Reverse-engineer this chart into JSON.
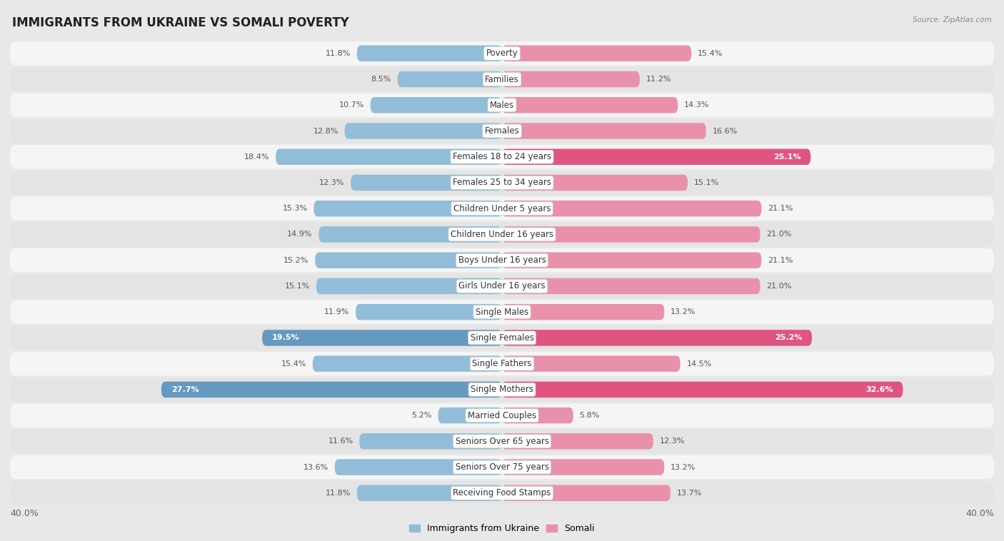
{
  "title": "IMMIGRANTS FROM UKRAINE VS SOMALI POVERTY",
  "source": "Source: ZipAtlas.com",
  "categories": [
    "Poverty",
    "Families",
    "Males",
    "Females",
    "Females 18 to 24 years",
    "Females 25 to 34 years",
    "Children Under 5 years",
    "Children Under 16 years",
    "Boys Under 16 years",
    "Girls Under 16 years",
    "Single Males",
    "Single Females",
    "Single Fathers",
    "Single Mothers",
    "Married Couples",
    "Seniors Over 65 years",
    "Seniors Over 75 years",
    "Receiving Food Stamps"
  ],
  "ukraine_values": [
    11.8,
    8.5,
    10.7,
    12.8,
    18.4,
    12.3,
    15.3,
    14.9,
    15.2,
    15.1,
    11.9,
    19.5,
    15.4,
    27.7,
    5.2,
    11.6,
    13.6,
    11.8
  ],
  "somali_values": [
    15.4,
    11.2,
    14.3,
    16.6,
    25.1,
    15.1,
    21.1,
    21.0,
    21.1,
    21.0,
    13.2,
    25.2,
    14.5,
    32.6,
    5.8,
    12.3,
    13.2,
    13.7
  ],
  "ukraine_color": "#92bdd8",
  "somali_color": "#e991aa",
  "ukraine_highlight_color": "#6699c0",
  "somali_highlight_color": "#e05580",
  "background_color": "#e8e8e8",
  "row_bg_white": "#f5f5f5",
  "row_bg_gray": "#e4e4e4",
  "max_value": 40.0,
  "legend_ukraine": "Immigrants from Ukraine",
  "legend_somali": "Somali",
  "title_fontsize": 12,
  "label_fontsize": 8.5,
  "value_fontsize": 8.0,
  "axis_label_fontsize": 9.0
}
